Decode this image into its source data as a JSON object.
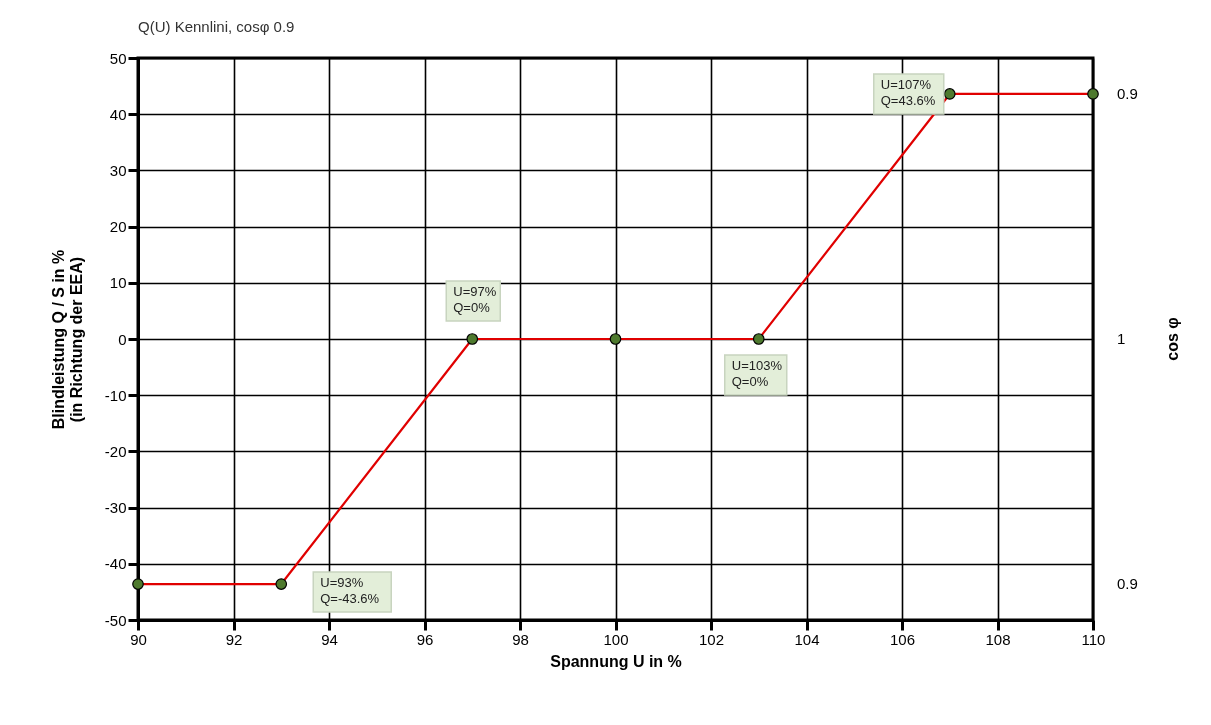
{
  "chart_data": {
    "type": "line",
    "title": "Q(U) Kennlini, cosφ 0.9",
    "xlabel": "Spannung U in %",
    "ylabel": "Blindleistung Q / S in %\n(in Richtung der EEA)",
    "y2label": "cos φ",
    "x": [
      90,
      93,
      97,
      100,
      103,
      107,
      110
    ],
    "series": [
      {
        "color": "#e00000",
        "values": [
          -43.6,
          -43.6,
          0,
          0,
          0,
          43.6,
          43.6
        ]
      }
    ],
    "xlim": [
      90,
      110
    ],
    "xticks": [
      90,
      92,
      94,
      96,
      98,
      100,
      102,
      104,
      106,
      108,
      110
    ],
    "ylim": [
      -50,
      50
    ],
    "yticks": [
      -50,
      -40,
      -30,
      -20,
      -10,
      0,
      10,
      20,
      30,
      40,
      50
    ],
    "annotations": [
      "0.9",
      "1",
      "0.9",
      {
        "text": "U=97%\nQ=0%",
        "x": 97,
        "y": 0
      },
      {
        "text": "U=103%\nQ=0%",
        "x": 103,
        "y": 0
      },
      {
        "text": "U=93%\nQ=-43.6%",
        "x": 93,
        "y": -43.6
      },
      {
        "text": "U=107%\nQ=43.6%",
        "x": 107,
        "y": 43.6
      }
    ],
    "grid": true,
    "marker": "circle",
    "line_style": "solid"
  }
}
